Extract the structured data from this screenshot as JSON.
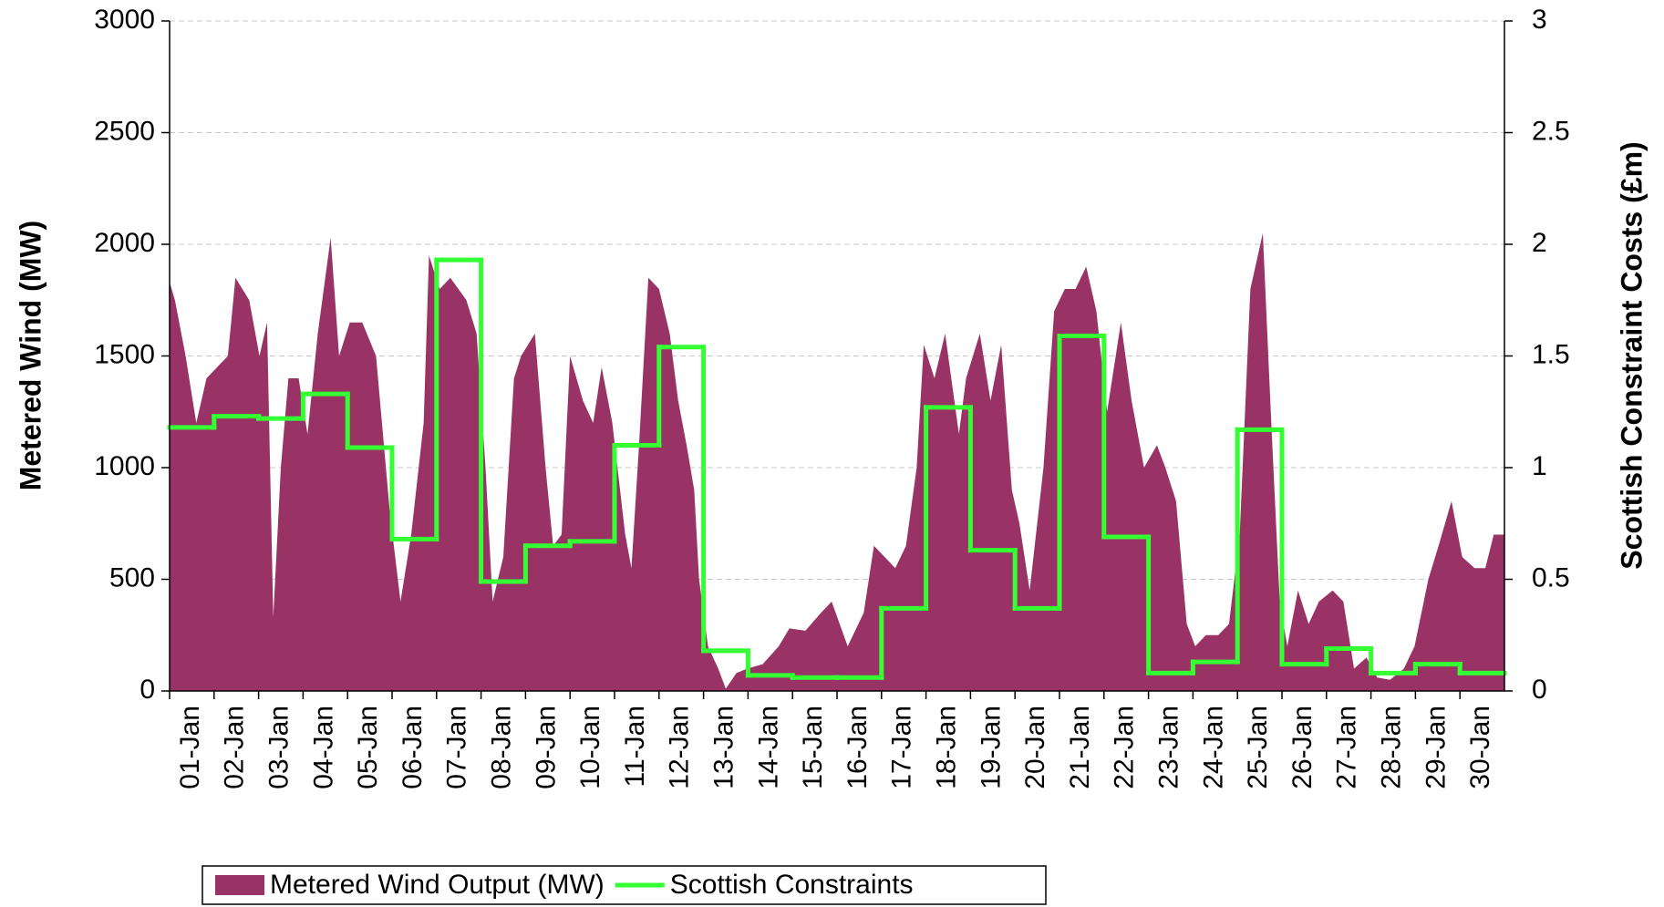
{
  "chart_data": {
    "type": "area",
    "ylabel": "Metered Wind (MW)",
    "y2label": "Scottish Constraint Costs (£m)",
    "xlim": [
      0,
      30
    ],
    "xticks": [
      {
        "value": 0,
        "label": "01-Jan"
      },
      {
        "value": 1,
        "label": "02-Jan"
      },
      {
        "value": 2,
        "label": "03-Jan"
      },
      {
        "value": 3,
        "label": "04-Jan"
      },
      {
        "value": 4,
        "label": "05-Jan"
      },
      {
        "value": 5,
        "label": "06-Jan"
      },
      {
        "value": 6,
        "label": "07-Jan"
      },
      {
        "value": 7,
        "label": "08-Jan"
      },
      {
        "value": 8,
        "label": "09-Jan"
      },
      {
        "value": 9,
        "label": "10-Jan"
      },
      {
        "value": 10,
        "label": "11-Jan"
      },
      {
        "value": 11,
        "label": "12-Jan"
      },
      {
        "value": 12,
        "label": "13-Jan"
      },
      {
        "value": 13,
        "label": "14-Jan"
      },
      {
        "value": 14,
        "label": "15-Jan"
      },
      {
        "value": 15,
        "label": "16-Jan"
      },
      {
        "value": 16,
        "label": "17-Jan"
      },
      {
        "value": 17,
        "label": "18-Jan"
      },
      {
        "value": 18,
        "label": "19-Jan"
      },
      {
        "value": 19,
        "label": "20-Jan"
      },
      {
        "value": 20,
        "label": "21-Jan"
      },
      {
        "value": 21,
        "label": "22-Jan"
      },
      {
        "value": 22,
        "label": "23-Jan"
      },
      {
        "value": 23,
        "label": "24-Jan"
      },
      {
        "value": 24,
        "label": "25-Jan"
      },
      {
        "value": 25,
        "label": "26-Jan"
      },
      {
        "value": 26,
        "label": "27-Jan"
      },
      {
        "value": 27,
        "label": "28-Jan"
      },
      {
        "value": 28,
        "label": "29-Jan"
      },
      {
        "value": 29,
        "label": "30-Jan"
      }
    ],
    "ylim": [
      0,
      3000
    ],
    "yticks": [
      0,
      500,
      1000,
      1500,
      2000,
      2500,
      3000
    ],
    "y2lim": [
      0,
      3
    ],
    "y2ticks": [
      0,
      0.5,
      1,
      1.5,
      2,
      2.5,
      3
    ],
    "grid": true,
    "legend": "bottom",
    "series": [
      {
        "name": "Metered Wind Output (MW)",
        "type": "area",
        "color": "#993366",
        "x": [
          0,
          0.12,
          0.36,
          0.6,
          0.83,
          1.07,
          1.31,
          1.48,
          1.79,
          2.02,
          2.19,
          2.33,
          2.5,
          2.67,
          2.9,
          3.1,
          3.33,
          3.62,
          3.81,
          4.05,
          4.33,
          4.64,
          4.95,
          5.19,
          5.43,
          5.71,
          5.83,
          6.07,
          6.31,
          6.67,
          6.9,
          7.1,
          7.26,
          7.5,
          7.74,
          7.9,
          8.21,
          8.45,
          8.62,
          8.81,
          9.0,
          9.29,
          9.52,
          9.71,
          9.95,
          10.24,
          10.38,
          10.55,
          10.76,
          11.0,
          11.24,
          11.43,
          11.62,
          11.79,
          11.9,
          12.1,
          12.33,
          12.5,
          12.74,
          12.98,
          13.33,
          13.69,
          13.93,
          14.29,
          14.64,
          14.88,
          15.24,
          15.6,
          15.83,
          16.07,
          16.31,
          16.55,
          16.79,
          16.95,
          17.19,
          17.43,
          17.74,
          17.9,
          18.21,
          18.45,
          18.69,
          18.93,
          19.1,
          19.33,
          19.64,
          19.88,
          20.12,
          20.36,
          20.6,
          20.83,
          21.07,
          21.38,
          21.62,
          21.9,
          22.19,
          22.38,
          22.62,
          22.86,
          23.05,
          23.29,
          23.57,
          23.81,
          24.05,
          24.29,
          24.57,
          24.76,
          24.95,
          25.12,
          25.36,
          25.6,
          25.83,
          26.14,
          26.38,
          26.62,
          26.9,
          27.14,
          27.43,
          27.74,
          27.98,
          28.29,
          28.52,
          28.81,
          29.05,
          29.33,
          29.57,
          29.76,
          30
        ],
        "values": [
          1830,
          1750,
          1500,
          1200,
          1400,
          1450,
          1500,
          1850,
          1750,
          1500,
          1650,
          330,
          1000,
          1400,
          1400,
          1150,
          1600,
          2030,
          1500,
          1650,
          1650,
          1500,
          800,
          400,
          700,
          1200,
          1950,
          1800,
          1850,
          1750,
          1600,
          1000,
          400,
          600,
          1400,
          1500,
          1600,
          1000,
          650,
          700,
          1500,
          1300,
          1200,
          1450,
          1200,
          700,
          550,
          1100,
          1850,
          1800,
          1600,
          1300,
          1100,
          900,
          500,
          200,
          100,
          10,
          80,
          100,
          120,
          200,
          280,
          270,
          350,
          400,
          200,
          350,
          650,
          600,
          550,
          650,
          1000,
          1550,
          1400,
          1600,
          1150,
          1400,
          1600,
          1300,
          1550,
          900,
          750,
          450,
          1000,
          1700,
          1800,
          1800,
          1900,
          1700,
          1250,
          1650,
          1300,
          1000,
          1100,
          1000,
          850,
          300,
          200,
          250,
          250,
          300,
          700,
          1800,
          2050,
          1200,
          400,
          200,
          450,
          300,
          400,
          450,
          400,
          100,
          150,
          60,
          50,
          100,
          200,
          500,
          650,
          850,
          600,
          550,
          550,
          700,
          700
        ]
      },
      {
        "name": "Scottish Constraints",
        "type": "step",
        "axis": "y2",
        "color": "#33ff33",
        "x": [
          0,
          1,
          2,
          3,
          4,
          5,
          6,
          7,
          8,
          9,
          10,
          11,
          12,
          13,
          14,
          15,
          16,
          17,
          18,
          19,
          20,
          21,
          22,
          23,
          24,
          25,
          26,
          27,
          28,
          29
        ],
        "values": [
          1.18,
          1.23,
          1.22,
          1.33,
          1.09,
          0.68,
          1.93,
          0.49,
          0.65,
          0.67,
          1.1,
          1.54,
          0.18,
          0.07,
          0.06,
          0.06,
          0.37,
          1.27,
          0.63,
          0.37,
          1.59,
          0.69,
          0.08,
          0.13,
          1.17,
          0.12,
          0.19,
          0.08,
          0.12,
          0.08
        ]
      }
    ]
  }
}
